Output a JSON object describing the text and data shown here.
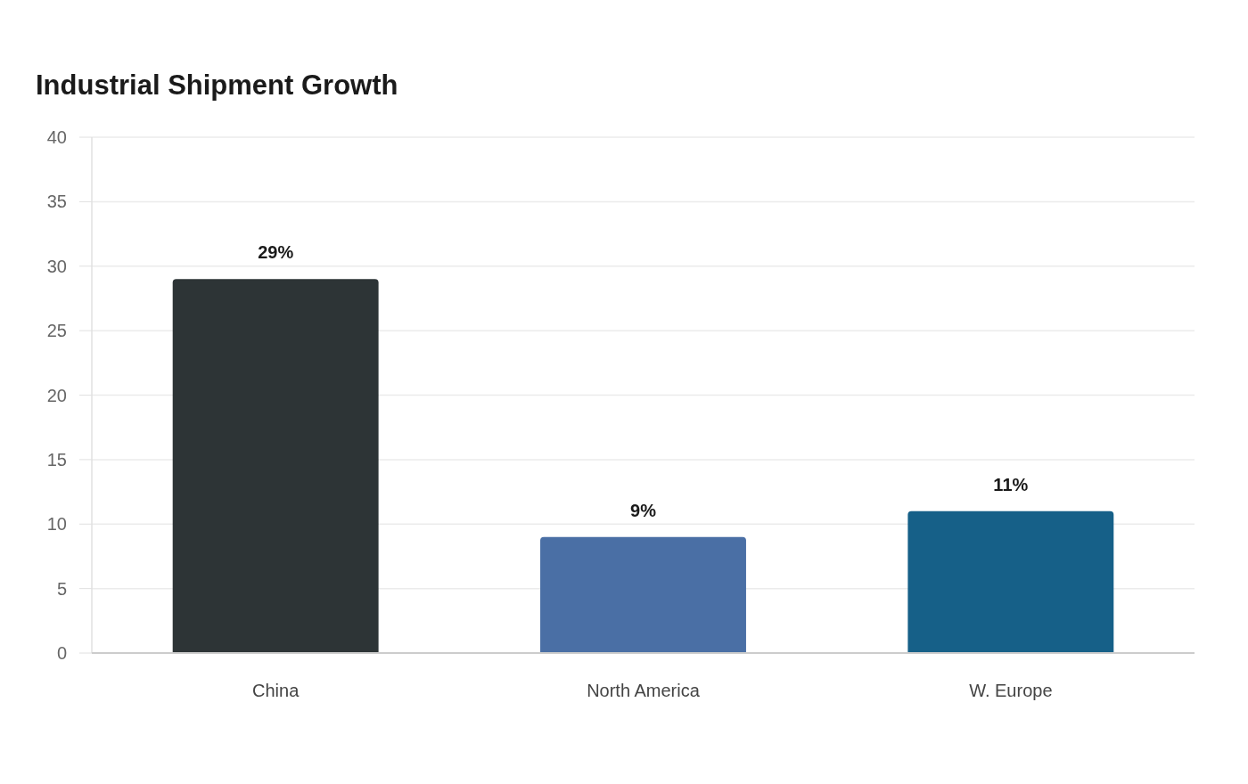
{
  "chart_data": {
    "type": "bar",
    "title": "Industrial Shipment Growth",
    "categories": [
      "China",
      "North America",
      "W. Europe"
    ],
    "values": [
      29,
      9,
      11
    ],
    "colors": [
      "#2d3436",
      "#4a6fa5",
      "#166088"
    ],
    "value_labels": [
      "29%",
      "9%",
      "11%"
    ],
    "ylim": [
      0,
      40
    ],
    "yticks": [
      0,
      5,
      10,
      15,
      20,
      25,
      30,
      35,
      40
    ],
    "grid": "y"
  }
}
